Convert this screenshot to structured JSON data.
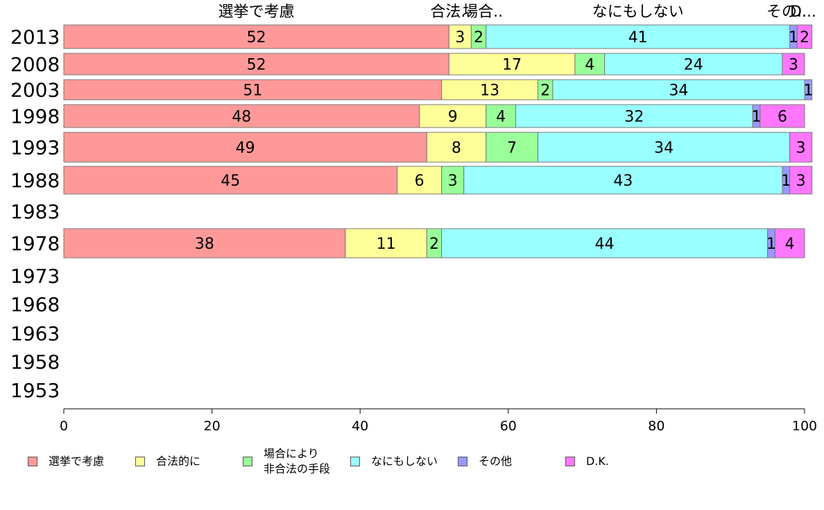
{
  "chart_data": {
    "type": "bar",
    "orientation": "horizontal",
    "stacked": true,
    "categories": [
      "2013",
      "2008",
      "2003",
      "1998",
      "1993",
      "1988",
      "1983",
      "1978",
      "1973",
      "1968",
      "1963",
      "1958",
      "1953"
    ],
    "series": [
      {
        "name": "選挙で考慮",
        "short_label": "選挙で考慮",
        "color": "#ff9999",
        "values": [
          52,
          52,
          51,
          48,
          49,
          45,
          null,
          38,
          null,
          null,
          null,
          null,
          null
        ]
      },
      {
        "name": "合法的に",
        "short_label": "合法..",
        "color": "#ffff99",
        "values": [
          3,
          17,
          13,
          9,
          8,
          6,
          null,
          11,
          null,
          null,
          null,
          null,
          null
        ]
      },
      {
        "name": "場合により\n非合法の手段",
        "short_label": "場合..",
        "color": "#99ff99",
        "values": [
          2,
          4,
          2,
          4,
          7,
          3,
          null,
          2,
          null,
          null,
          null,
          null,
          null
        ]
      },
      {
        "name": "なにもしない",
        "short_label": "なにもしない",
        "color": "#99ffff",
        "values": [
          41,
          24,
          34,
          32,
          34,
          43,
          null,
          44,
          null,
          null,
          null,
          null,
          null
        ]
      },
      {
        "name": "その他",
        "short_label": "その..",
        "color": "#9999ff",
        "values": [
          1,
          0,
          1,
          1,
          0,
          1,
          null,
          1,
          null,
          null,
          null,
          null,
          null
        ]
      },
      {
        "name": "D.K.",
        "short_label": "D...",
        "color": "#ff77ff",
        "values": [
          2,
          3,
          0,
          6,
          3,
          3,
          null,
          4,
          null,
          null,
          null,
          null,
          null
        ]
      }
    ],
    "xlim": [
      0,
      100
    ],
    "xticks": [
      0,
      20,
      40,
      60,
      80,
      100
    ],
    "legend_position": "bottom"
  }
}
